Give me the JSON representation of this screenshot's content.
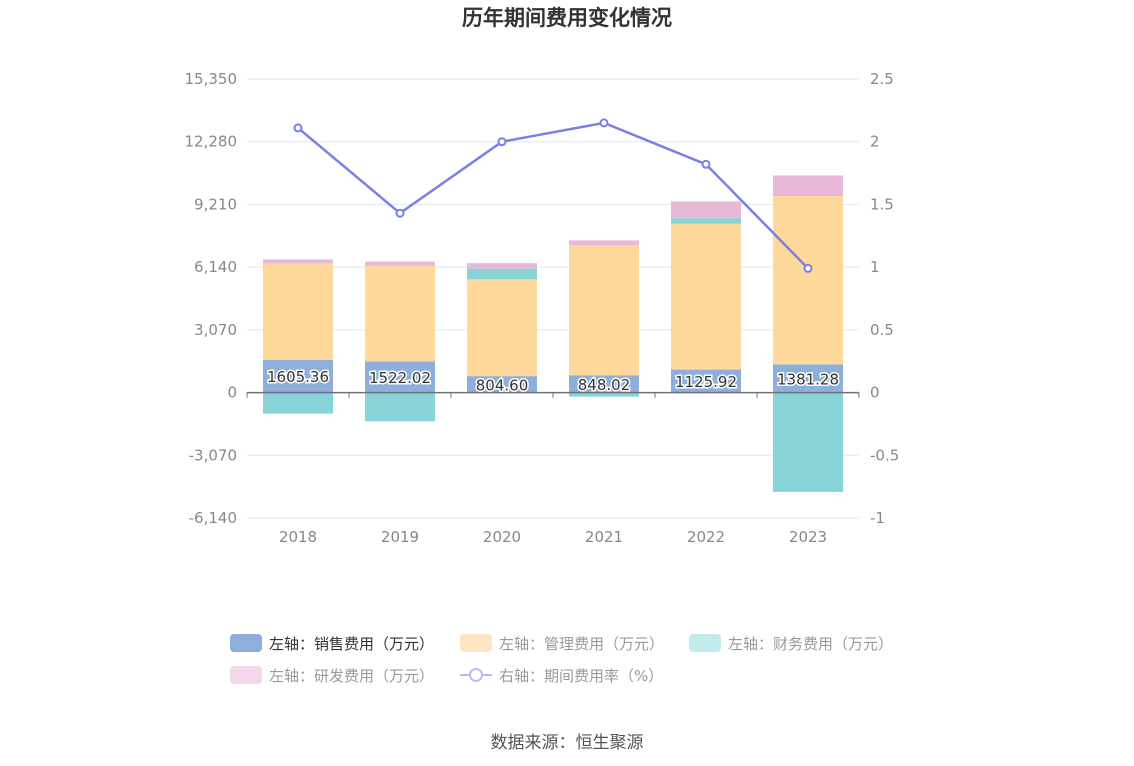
{
  "chart_data": {
    "type": "bar",
    "title": "历年期间费用变化情况",
    "categories": [
      "2018",
      "2019",
      "2020",
      "2021",
      "2022",
      "2023"
    ],
    "left_axis": {
      "ylim": [
        -6140,
        15350
      ],
      "ticks": [
        15350,
        12280,
        9210,
        6140,
        3070,
        0,
        -3070,
        -6140
      ],
      "tick_labels": [
        "15,350",
        "12,280",
        "9,210",
        "6,140",
        "3,070",
        "0",
        "-3,070",
        "-6,140"
      ]
    },
    "right_axis": {
      "ylim": [
        -1,
        2.5
      ],
      "ticks": [
        2.5,
        2,
        1.5,
        1,
        0.5,
        0,
        -0.5,
        -1
      ],
      "tick_labels": [
        "2.5",
        "2",
        "1.5",
        "1",
        "0.5",
        "0",
        "-0.5",
        "-1"
      ]
    },
    "series": [
      {
        "name": "左轴：销售费用（万元）",
        "axis": "left",
        "kind": "bar",
        "color": "#8eafdb",
        "values": [
          1605.36,
          1522.02,
          804.6,
          848.02,
          1125.92,
          1381.28
        ],
        "data_labels": [
          "1605.36",
          "1522.02",
          "804.60",
          "848.02",
          "1125.92",
          "1381.28"
        ]
      },
      {
        "name": "左轴：管理费用（万元）",
        "axis": "left",
        "kind": "bar",
        "color": "#ffd89c",
        "values": [
          4720,
          4680,
          4740,
          6360,
          7150,
          8240
        ]
      },
      {
        "name": "左轴：财务费用（万元）",
        "axis": "left",
        "kind": "bar",
        "color": "#86d4d8",
        "values": [
          -1030,
          -1410,
          520,
          -200,
          260,
          -4860
        ]
      },
      {
        "name": "左轴：研发费用（万元）",
        "axis": "left",
        "kind": "bar",
        "color": "#e8b8d8",
        "values": [
          190,
          210,
          270,
          240,
          820,
          1010
        ]
      },
      {
        "name": "右轴：期间费用率（%）",
        "axis": "right",
        "kind": "line",
        "color": "#7b7fe8",
        "values": [
          2.11,
          1.43,
          2.0,
          2.15,
          1.82,
          0.99
        ]
      }
    ],
    "legend": {
      "placement": "bottom",
      "colors": [
        "#8eafdb",
        "#ffe6c2",
        "#c2ebed",
        "#f3d7ea",
        "#b9bdf4"
      ],
      "text_colors": [
        "#333333",
        "#999999",
        "#999999",
        "#999999",
        "#999999"
      ]
    },
    "grid": true
  },
  "source": "数据来源：恒生聚源"
}
